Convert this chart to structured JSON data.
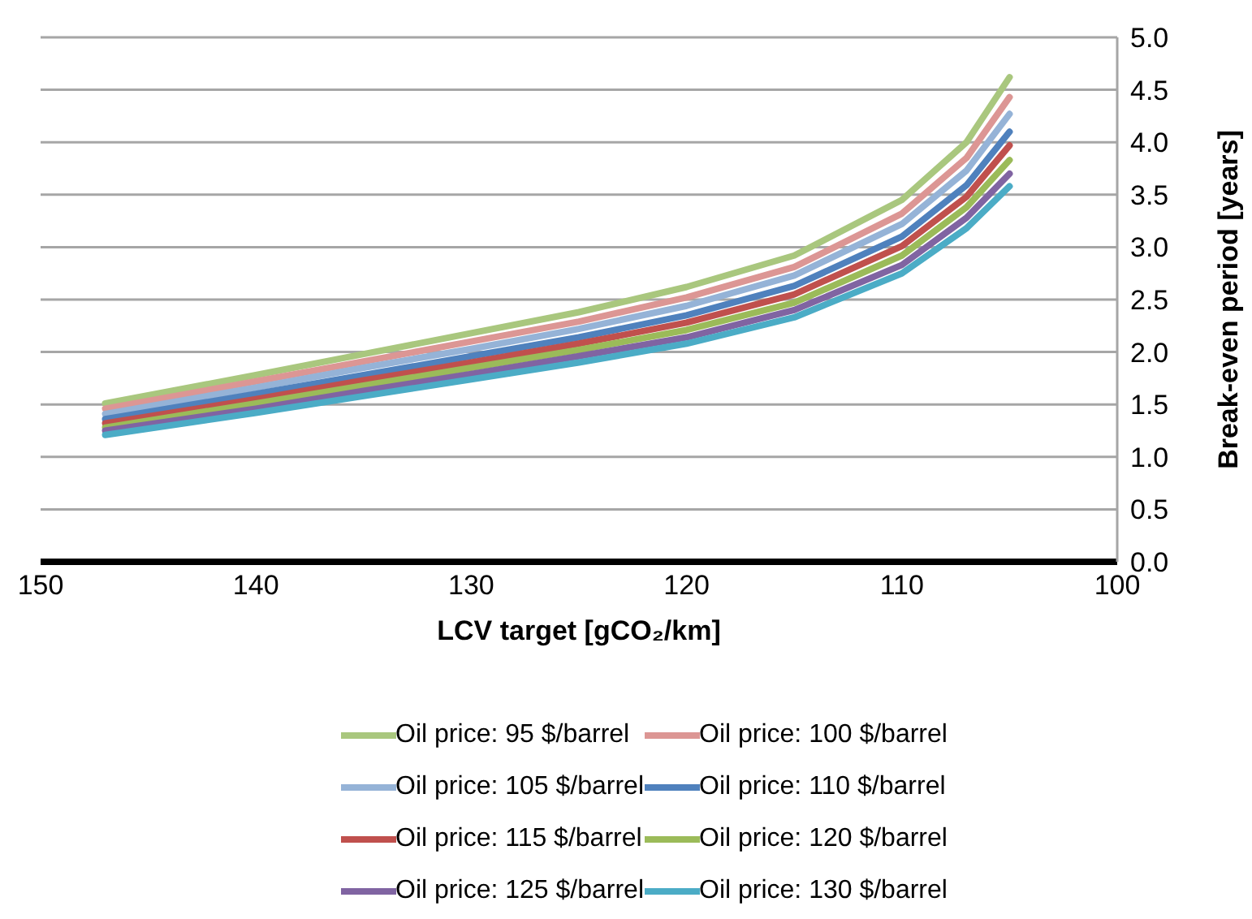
{
  "chart_data": {
    "type": "line",
    "xlabel": "LCV target [gCO₂/km]",
    "ylabel": "Break-even period [years]",
    "x": [
      147,
      140,
      135,
      130,
      125,
      120,
      115,
      110,
      107,
      105
    ],
    "series": [
      {
        "name": "Oil price: 95 $/barrel",
        "color": "#a9c77e",
        "values": [
          1.51,
          1.78,
          1.98,
          2.18,
          2.38,
          2.62,
          2.92,
          3.45,
          4.0,
          4.62
        ]
      },
      {
        "name": "Oil price: 100 $/barrel",
        "color": "#dc9694",
        "values": [
          1.46,
          1.72,
          1.91,
          2.1,
          2.29,
          2.52,
          2.81,
          3.32,
          3.85,
          4.43
        ]
      },
      {
        "name": "Oil price: 105 $/barrel",
        "color": "#95b3d7",
        "values": [
          1.41,
          1.66,
          1.85,
          2.03,
          2.22,
          2.44,
          2.73,
          3.22,
          3.73,
          4.27
        ]
      },
      {
        "name": "Oil price: 110 $/barrel",
        "color": "#4f81bd",
        "values": [
          1.36,
          1.6,
          1.78,
          1.96,
          2.14,
          2.35,
          2.63,
          3.1,
          3.59,
          4.1
        ]
      },
      {
        "name": "Oil price: 115 $/barrel",
        "color": "#c0504d",
        "values": [
          1.32,
          1.55,
          1.73,
          1.9,
          2.08,
          2.28,
          2.55,
          3.01,
          3.48,
          3.97
        ]
      },
      {
        "name": "Oil price: 120 $/barrel",
        "color": "#9bbb59",
        "values": [
          1.28,
          1.51,
          1.68,
          1.85,
          2.02,
          2.21,
          2.47,
          2.92,
          3.38,
          3.83
        ]
      },
      {
        "name": "Oil price: 125 $/barrel",
        "color": "#8064a2",
        "values": [
          1.25,
          1.46,
          1.63,
          1.79,
          1.96,
          2.14,
          2.4,
          2.83,
          3.28,
          3.7
        ]
      },
      {
        "name": "Oil price: 130 $/barrel",
        "color": "#4bacc6",
        "values": [
          1.21,
          1.42,
          1.58,
          1.74,
          1.9,
          2.08,
          2.33,
          2.75,
          3.18,
          3.58
        ]
      }
    ],
    "xlim": [
      150,
      100
    ],
    "xticks": [
      150,
      140,
      130,
      120,
      110,
      100
    ],
    "ylim": [
      0,
      5
    ],
    "yticks": [
      {
        "value": 0,
        "label": "0.0"
      },
      {
        "value": 0.5,
        "label": "0.5"
      },
      {
        "value": 1,
        "label": "1.0"
      },
      {
        "value": 1.5,
        "label": "1.5"
      },
      {
        "value": 2,
        "label": "2.0"
      },
      {
        "value": 2.5,
        "label": "2.5"
      },
      {
        "value": 3,
        "label": "3.0"
      },
      {
        "value": 3.5,
        "label": "3.5"
      },
      {
        "value": 4,
        "label": "4.0"
      },
      {
        "value": 4.5,
        "label": "4.5"
      },
      {
        "value": 5,
        "label": "5.0"
      }
    ],
    "grid": "y",
    "legend": "bottom",
    "marker": "none",
    "line_style": "solid"
  }
}
